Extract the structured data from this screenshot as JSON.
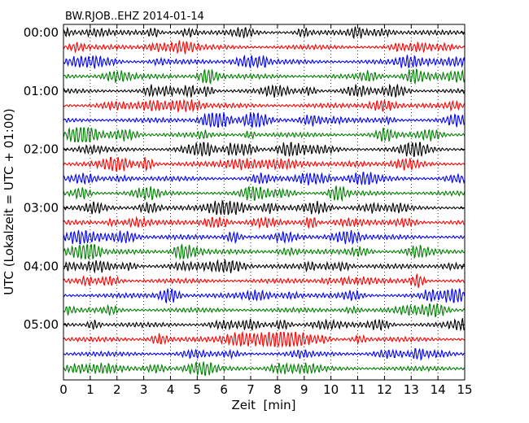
{
  "chart_data": {
    "type": "line",
    "title": "BW.RJOB..EHZ 2014-01-14",
    "xlabel": "Zeit  [min]",
    "ylabel": "UTC (Lokalzeit = UTC + 01:00)",
    "xlim": [
      0,
      15
    ],
    "x_ticks": [
      0,
      1,
      2,
      3,
      4,
      5,
      6,
      7,
      8,
      9,
      10,
      11,
      12,
      13,
      14,
      15
    ],
    "y_tick_labels": [
      "00:00",
      "01:00",
      "02:00",
      "03:00",
      "04:00",
      "05:00"
    ],
    "y_tick_trace_index": [
      0,
      4,
      8,
      12,
      16,
      20
    ],
    "trace_interval_minutes": 15,
    "trace_count": 24,
    "trace_colors": [
      "#000000",
      "#ff0000",
      "#0000ff",
      "#008000"
    ],
    "grid": "vertical-dotted",
    "series": []
  }
}
